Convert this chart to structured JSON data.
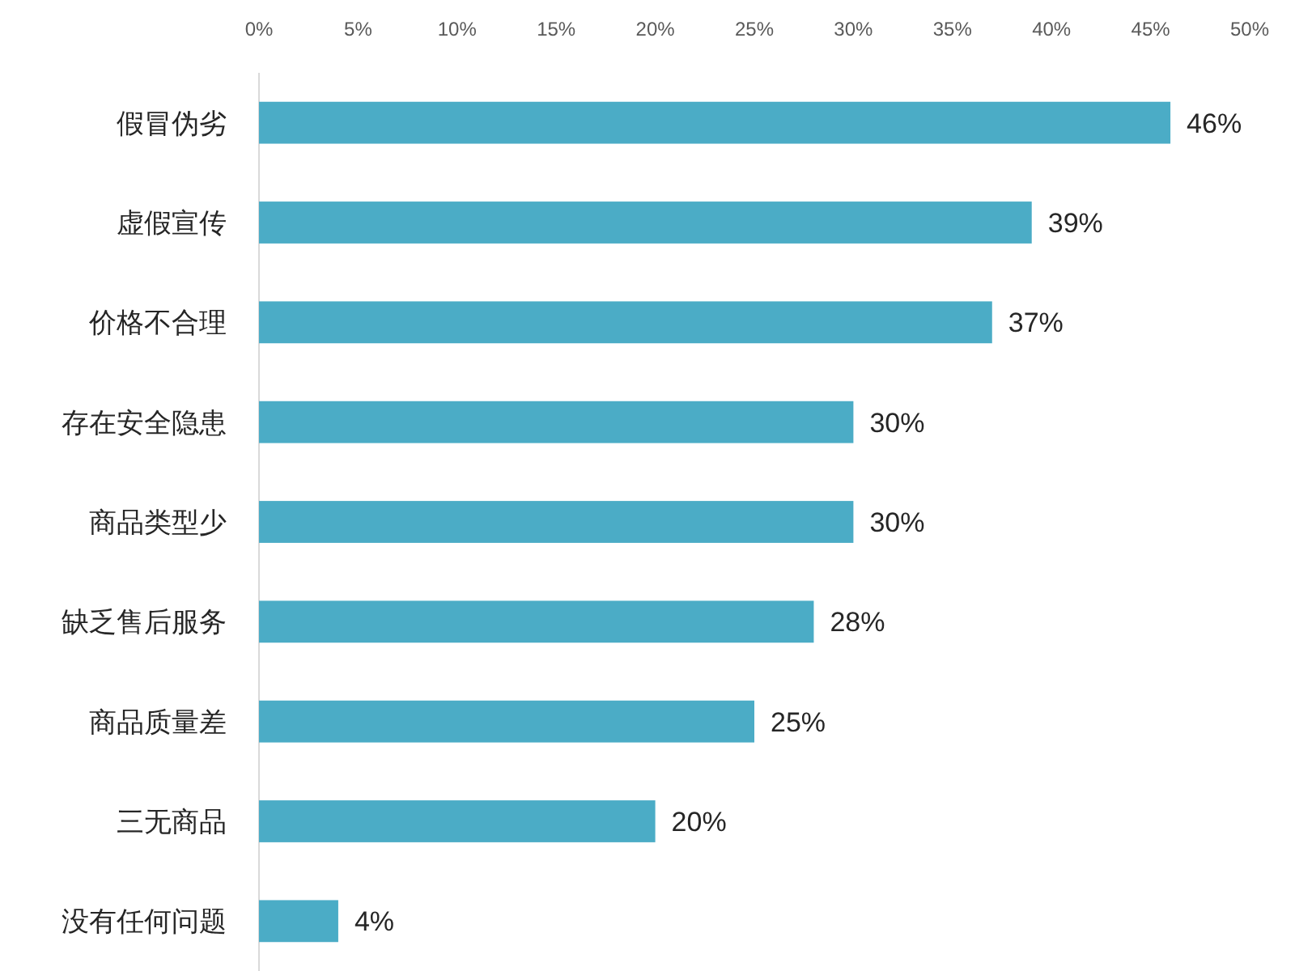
{
  "chart_data": {
    "type": "bar",
    "orientation": "horizontal",
    "categories": [
      "假冒伪劣",
      "虚假宣传",
      "价格不合理",
      "存在安全隐患",
      "商品类型少",
      "缺乏售后服务",
      "商品质量差",
      "三无商品",
      "没有任何问题"
    ],
    "values": [
      46,
      39,
      37,
      30,
      30,
      28,
      25,
      20,
      4
    ],
    "value_labels": [
      "46%",
      "39%",
      "37%",
      "30%",
      "30%",
      "28%",
      "25%",
      "20%",
      "4%"
    ],
    "color": "#4bacc6",
    "xlim": [
      0,
      50
    ],
    "xticks": [
      {
        "value": 0,
        "label": "0%"
      },
      {
        "value": 5,
        "label": "5%"
      },
      {
        "value": 10,
        "label": "10%"
      },
      {
        "value": 15,
        "label": "15%"
      },
      {
        "value": 20,
        "label": "20%"
      },
      {
        "value": 25,
        "label": "25%"
      },
      {
        "value": 30,
        "label": "30%"
      },
      {
        "value": 35,
        "label": "35%"
      },
      {
        "value": 40,
        "label": "40%"
      },
      {
        "value": 45,
        "label": "45%"
      },
      {
        "value": 50,
        "label": "50%"
      }
    ],
    "grid": false
  }
}
